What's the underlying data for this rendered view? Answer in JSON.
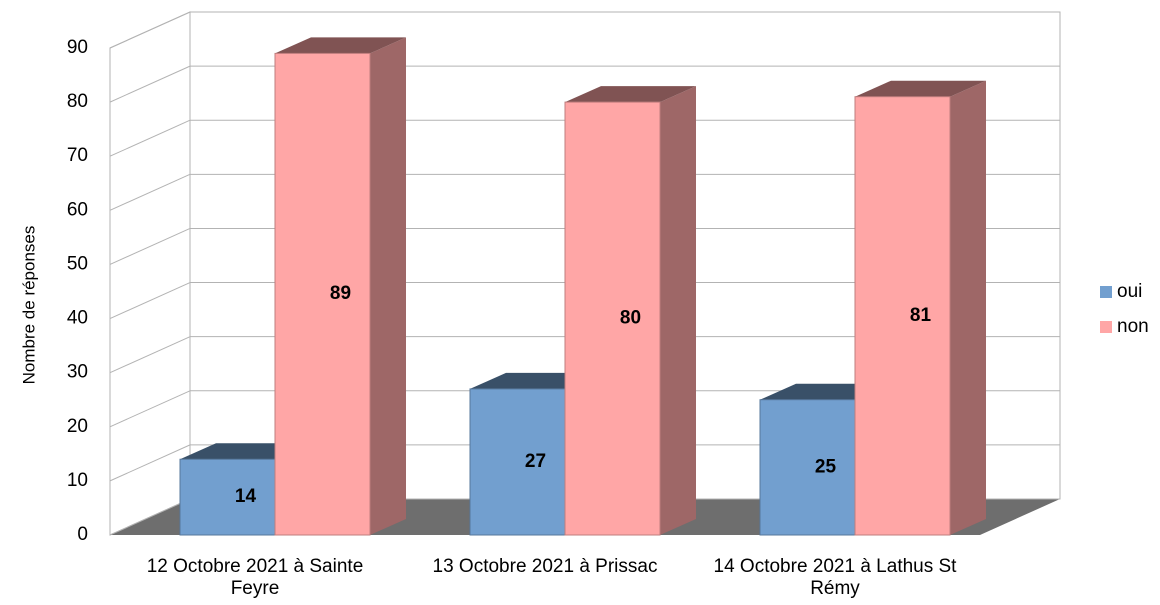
{
  "chart_data": {
    "type": "bar",
    "y_label": "Nombre de réponses",
    "categories": [
      "12 Octobre 2021 à Sainte Feyre",
      "13 Octobre 2021 à Prissac",
      "14 Octobre 2021 à Lathus St Rémy"
    ],
    "series": [
      {
        "name": "oui",
        "color": "#729fcf",
        "values": [
          14,
          27,
          25
        ]
      },
      {
        "name": "non",
        "color": "#ffa6a6",
        "values": [
          89,
          80,
          81
        ]
      }
    ],
    "ylim": [
      0,
      90
    ],
    "yticks": [
      0,
      10,
      20,
      30,
      40,
      50,
      60,
      70,
      80,
      90
    ],
    "grid": true,
    "legend": "right"
  }
}
